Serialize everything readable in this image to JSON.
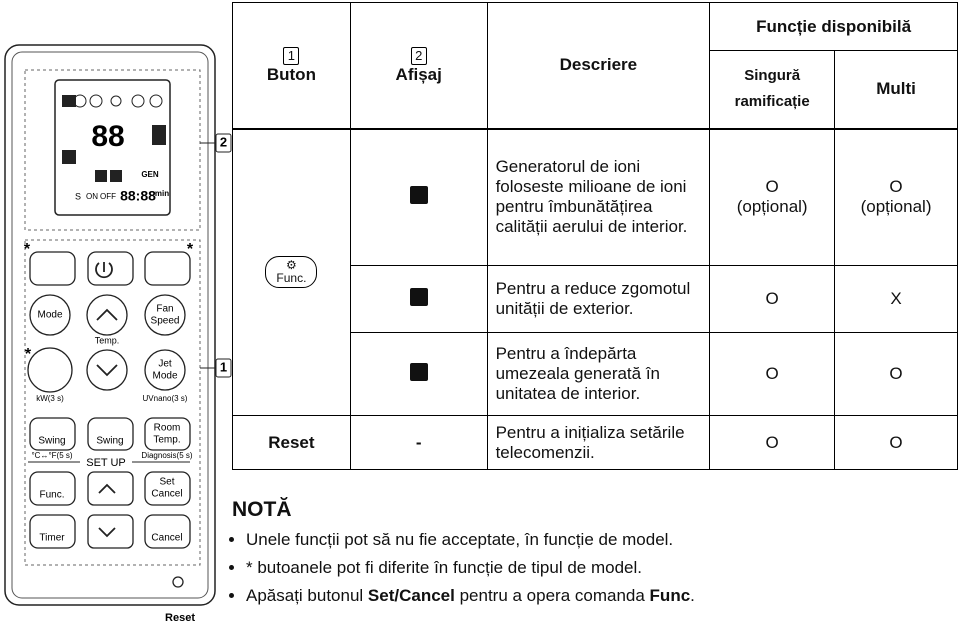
{
  "remote": {
    "callout_display": "2",
    "callout_buttons": "1",
    "asterisk": "*",
    "display": {
      "digits": "88",
      "s": "S",
      "on": "ON",
      "off": "OFF",
      "clock": "88:88",
      "min": "min",
      "gen": "GEN"
    },
    "buttons": {
      "mode": "Mode",
      "fan": "Fan",
      "speed": "Speed",
      "temp": "Temp.",
      "jet": "Jet",
      "jet_mode": "Mode",
      "kw": "kW(3 s)",
      "uvnano": "UVnano(3 s)",
      "swing1": "Swing",
      "swing2": "Swing",
      "room": "Room",
      "room_temp": "Temp.",
      "cf": "°C↔°F(5 s)",
      "diagnosis": "Diagnosis(5 s)",
      "setup": "SET UP",
      "func": "Func.",
      "set": "Set",
      "cancel": "Cancel",
      "timer": "Timer",
      "cancel2": "Cancel"
    },
    "reset": "Reset"
  },
  "table": {
    "header": {
      "col1_marker": "1",
      "col1": "Buton",
      "col2_marker": "2",
      "col2": "Afișaj",
      "col3": "Descriere",
      "group": "Funcție disponibilă",
      "single": "Singură ramificație",
      "multi": "Multi"
    },
    "rows": [
      {
        "button": "Func.",
        "description": "Generatorul de ioni foloseste milioane de ioni pentru îmbunătățirea calității aerului de interior.",
        "single": "O",
        "single_note": "(opțional)",
        "multi": "O",
        "multi_note": "(opțional)"
      },
      {
        "description": "Pentru a reduce zgomotul unității de exterior.",
        "single": "O",
        "multi": "X"
      },
      {
        "description": "Pentru a îndepărta umezeala generată în unitatea de interior.",
        "single": "O",
        "multi": "O"
      },
      {
        "button": "Reset",
        "display": "-",
        "description": "Pentru a inițializa setările telecomenzii.",
        "single": "O",
        "multi": "O"
      }
    ]
  },
  "note": {
    "title": "NOTĂ",
    "items": [
      "Unele funcții pot să nu fie acceptate, în funcție de model.",
      "* butoanele pot fi diferite în funcție de tipul de model.",
      {
        "t1": "Apăsați butonul ",
        "b1": "Set/Cancel",
        "t2": " pentru a opera comanda ",
        "b2": "Func",
        "t3": "."
      }
    ]
  }
}
